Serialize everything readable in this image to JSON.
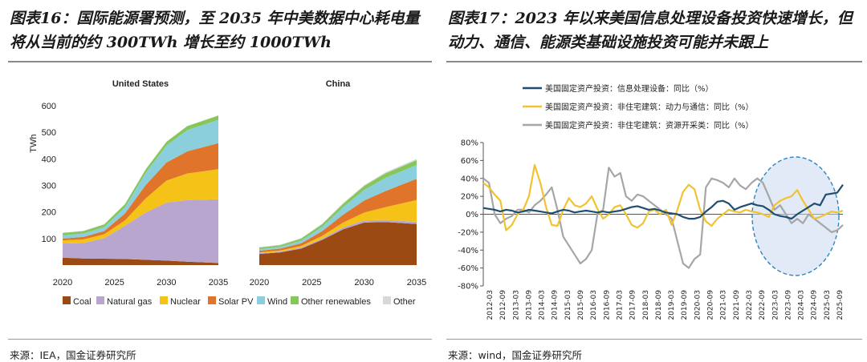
{
  "figure16": {
    "title": "图表16：国际能源署预测，至 2035 年中美数据中心耗电量将从当前的约 300TWh 增长至约 1000TWh",
    "source": "来源：IEA，国金证券研究所"
  },
  "figure17": {
    "title": "图表17：2023 年以来美国信息处理设备投资快速增长，但动力、通信、能源类基础设施投资可能并未跟上",
    "source": "来源：wind，国金证券研究所"
  },
  "colors": {
    "Coal": "#9c4a14",
    "Natural gas": "#b8a6cf",
    "Nuclear": "#f5c318",
    "Solar PV": "#e0742a",
    "Wind": "#8bcfdc",
    "Other renewables": "#86c75a",
    "Other": "#d8d8d8",
    "line_it": "#1f4e6e",
    "line_power": "#f2c230",
    "line_resource": "#a6a6a6"
  },
  "chart_data": [
    {
      "type": "area",
      "stacked": true,
      "title": "United States",
      "ylabel": "TWh",
      "ylim": [
        0,
        600
      ],
      "yticks": [
        "100",
        "200",
        "300",
        "400",
        "500",
        "600"
      ],
      "xticks": [
        "2020",
        "2025",
        "2030",
        "2035"
      ],
      "x": [
        2020,
        2022,
        2024,
        2026,
        2028,
        2030,
        2032,
        2035
      ],
      "series": [
        {
          "name": "Coal",
          "values": [
            28,
            25,
            24,
            23,
            20,
            17,
            13,
            8
          ]
        },
        {
          "name": "Natural gas",
          "values": [
            53,
            58,
            77,
            125,
            178,
            218,
            232,
            240
          ]
        },
        {
          "name": "Nuclear",
          "values": [
            12,
            14,
            15,
            20,
            53,
            83,
            100,
            113
          ]
        },
        {
          "name": "Solar PV",
          "values": [
            7,
            9,
            12,
            26,
            50,
            68,
            83,
            98
          ]
        },
        {
          "name": "Wind",
          "values": [
            12,
            13,
            15,
            23,
            46,
            64,
            80,
            88
          ]
        },
        {
          "name": "Other renewables",
          "values": [
            9,
            9,
            10,
            12,
            13,
            14,
            15,
            16
          ]
        },
        {
          "name": "Other",
          "values": [
            1,
            1,
            1,
            1,
            1,
            1,
            1,
            1
          ]
        }
      ]
    },
    {
      "type": "area",
      "stacked": true,
      "title": "China",
      "ylim": [
        0,
        600
      ],
      "xticks": [
        "2020",
        "2025",
        "2030",
        "2035"
      ],
      "x": [
        2020,
        2022,
        2024,
        2026,
        2028,
        2030,
        2032,
        2035
      ],
      "series": [
        {
          "name": "Coal",
          "values": [
            42,
            48,
            62,
            95,
            135,
            160,
            162,
            155
          ]
        },
        {
          "name": "Natural gas",
          "values": [
            3,
            3,
            4,
            5,
            7,
            8,
            8,
            8
          ]
        },
        {
          "name": "Nuclear",
          "values": [
            3,
            4,
            6,
            10,
            18,
            30,
            48,
            82
          ]
        },
        {
          "name": "Solar PV",
          "values": [
            6,
            7,
            10,
            18,
            30,
            45,
            60,
            80
          ]
        },
        {
          "name": "Wind",
          "values": [
            6,
            7,
            10,
            16,
            28,
            40,
            50,
            52
          ]
        },
        {
          "name": "Other renewables",
          "values": [
            6,
            6,
            8,
            10,
            13,
            15,
            17,
            18
          ]
        },
        {
          "name": "Other",
          "values": [
            2,
            2,
            2,
            2,
            3,
            3,
            4,
            5
          ]
        }
      ]
    },
    {
      "type": "line",
      "ylim": [
        -80,
        80
      ],
      "yticks": [
        "80%",
        "60%",
        "40%",
        "20%",
        "0%",
        "-20%",
        "-40%",
        "-60%",
        "-80%"
      ],
      "xticks": [
        "2012-03",
        "2012-09",
        "2013-03",
        "2013-09",
        "2014-03",
        "2014-09",
        "2015-03",
        "2015-09",
        "2016-03",
        "2016-09",
        "2017-03",
        "2017-09",
        "2018-03",
        "2018-09",
        "2019-03",
        "2019-09",
        "2020-03",
        "2020-09",
        "2021-03",
        "2021-09",
        "2022-03",
        "2022-09",
        "2023-03",
        "2023-09",
        "2024-03",
        "2024-09",
        "2025-03",
        "2025-09"
      ],
      "series": [
        {
          "name": "美国固定资产投资：信息处理设备：同比（%）",
          "values": [
            7,
            6,
            5,
            3,
            5,
            4,
            2,
            3,
            5,
            4,
            3,
            2,
            1,
            3,
            5,
            4,
            2,
            3,
            4,
            3,
            2,
            3,
            2,
            3,
            4,
            6,
            8,
            9,
            7,
            5,
            6,
            4,
            2,
            1,
            0,
            -3,
            -5,
            -5,
            -3,
            3,
            8,
            14,
            15,
            12,
            5,
            8,
            10,
            12,
            10,
            9,
            5,
            0,
            -2,
            -3,
            -5,
            0,
            4,
            8,
            12,
            10,
            22,
            23,
            24,
            33
          ]
        },
        {
          "name": "美国固定资产投资：非住宅建筑：动力与通信：同比（%）",
          "values": [
            35,
            30,
            22,
            15,
            -18,
            -12,
            0,
            5,
            20,
            55,
            35,
            8,
            -12,
            -13,
            5,
            18,
            10,
            8,
            12,
            20,
            6,
            -5,
            0,
            8,
            10,
            0,
            -12,
            -15,
            -10,
            3,
            5,
            0,
            5,
            -12,
            5,
            25,
            33,
            28,
            5,
            -8,
            -13,
            -5,
            0,
            5,
            3,
            2,
            5,
            3,
            2,
            0,
            -3,
            10,
            15,
            18,
            20,
            27,
            15,
            5,
            -5,
            -3,
            0,
            3,
            2,
            4
          ]
        },
        {
          "name": "美国固定资产投资：非住宅建筑：资源开采类：同比（%）",
          "values": [
            40,
            35,
            0,
            -10,
            -5,
            -2,
            5,
            5,
            2,
            10,
            15,
            22,
            30,
            5,
            -25,
            -35,
            -45,
            -55,
            -50,
            -40,
            0,
            5,
            52,
            42,
            46,
            20,
            15,
            22,
            20,
            15,
            10,
            5,
            0,
            -5,
            -30,
            -55,
            -60,
            -50,
            -45,
            30,
            40,
            38,
            35,
            30,
            40,
            32,
            28,
            35,
            40,
            35,
            20,
            5,
            10,
            0,
            -10,
            -5,
            -10,
            0,
            -5,
            -10,
            -15,
            -20,
            -18,
            -12
          ]
        }
      ]
    }
  ],
  "legend_labels": [
    "Coal",
    "Natural gas",
    "Nuclear",
    "Solar PV",
    "Wind",
    "Other renewables",
    "Other"
  ]
}
